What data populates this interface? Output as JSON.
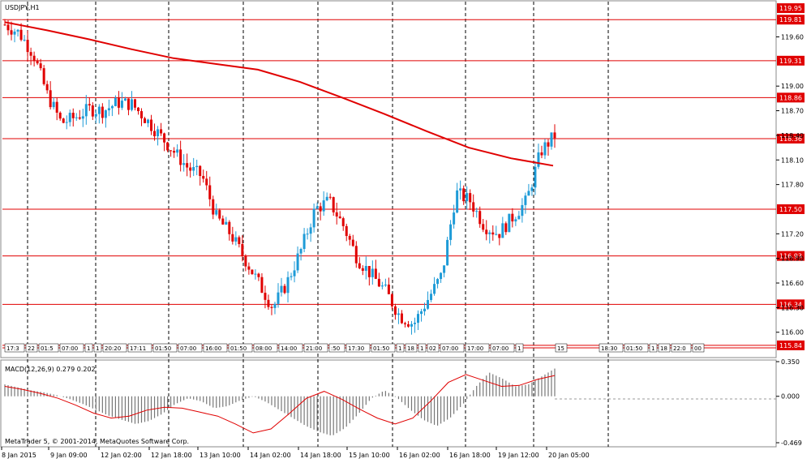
{
  "chart_data": [
    {
      "type": "candlestick",
      "title": "USDJPY,H1",
      "ylim": [
        115.78,
        120.0
      ],
      "y_ticks": [
        "119.95",
        "119.60",
        "119.31",
        "119.00",
        "118.70",
        "118.40",
        "118.10",
        "117.80",
        "117.50",
        "117.20",
        "116.90",
        "116.60",
        "116.30",
        "116.00"
      ],
      "x_ticks": [
        "8 Jan 2015",
        "9 Jan 09:00",
        "12 Jan 02:00",
        "12 Jan 18:00",
        "13 Jan 10:00",
        "14 Jan 02:00",
        "14 Jan 18:00",
        "15 Jan 10:00",
        "16 Jan 02:00",
        "16 Jan 18:00",
        "19 Jan 12:00",
        "20 Jan 05:00"
      ],
      "price_lines": [
        {
          "value": 119.81,
          "label": "119.81"
        },
        {
          "value": 119.31,
          "label": "119.31"
        },
        {
          "value": 118.86,
          "label": "118.86"
        },
        {
          "value": 118.36,
          "label": "118.36"
        },
        {
          "value": 117.5,
          "label": "117.50"
        },
        {
          "value": 116.93,
          "label": "116.93"
        },
        {
          "value": 116.34,
          "label": "116.34"
        },
        {
          "value": 115.84,
          "label": "115.84"
        }
      ],
      "current_price": {
        "value": 119.95,
        "label": "119.95"
      },
      "moving_average_points": [
        119.78,
        119.68,
        119.57,
        119.45,
        119.34,
        119.27,
        119.2,
        119.05,
        118.86,
        118.66,
        118.45,
        118.25,
        118.12,
        118.03
      ],
      "close_points": [
        119.75,
        119.65,
        119.4,
        118.9,
        118.55,
        118.62,
        118.72,
        118.7,
        118.8,
        118.78,
        118.6,
        118.4,
        118.2,
        118.0,
        117.9,
        117.4,
        117.2,
        116.9,
        116.6,
        116.3,
        116.6,
        117.0,
        117.5,
        117.6,
        117.3,
        116.9,
        116.7,
        116.5,
        116.2,
        116.1,
        116.4,
        116.7,
        117.7,
        117.6,
        117.3,
        117.2,
        117.4,
        117.6,
        118.2,
        118.4
      ],
      "time_labels_row": [
        "17:3",
        "22",
        "01:5",
        "07:00",
        "1",
        "1",
        "20:20",
        "17:11",
        "01:50",
        "07:00",
        "16:00",
        "01:50",
        "08:00",
        "14:00",
        "21:00",
        ":50",
        "17:30",
        "01:50",
        "1",
        "18",
        "1",
        "02",
        "07:00",
        "17:00",
        "07:00",
        "1",
        "15",
        "18:30",
        "01:50",
        "1",
        "18",
        "22:0",
        "00"
      ]
    },
    {
      "type": "bar",
      "title": "MACD(12,26,9) 0.279 0.202",
      "ylim": [
        -0.469,
        0.35
      ],
      "y_ticks": [
        "0.350",
        "0.000",
        "-0.469"
      ],
      "histogram": [
        0.12,
        0.09,
        0.06,
        0.04,
        0.01,
        -0.03,
        -0.08,
        -0.14,
        -0.2,
        -0.24,
        -0.28,
        -0.25,
        -0.18,
        -0.08,
        -0.02,
        -0.05,
        -0.12,
        -0.1,
        -0.04,
        0.0,
        -0.06,
        -0.14,
        -0.22,
        -0.3,
        -0.36,
        -0.4,
        -0.32,
        -0.18,
        -0.02,
        0.06,
        -0.02,
        -0.14,
        -0.24,
        -0.3,
        -0.22,
        -0.08,
        0.1,
        0.24,
        0.18,
        0.1,
        0.12,
        0.2,
        0.28
      ],
      "signal": [
        0.1,
        0.07,
        0.03,
        -0.02,
        -0.09,
        -0.17,
        -0.22,
        -0.2,
        -0.14,
        -0.11,
        -0.12,
        -0.16,
        -0.2,
        -0.28,
        -0.37,
        -0.33,
        -0.18,
        -0.02,
        0.05,
        -0.03,
        -0.13,
        -0.22,
        -0.28,
        -0.22,
        -0.05,
        0.14,
        0.22,
        0.16,
        0.1,
        0.11,
        0.17,
        0.21
      ],
      "footer": "MetaTrader 5, © 2001-2014, MetaQuotes Software Corp."
    }
  ],
  "colors": {
    "bull": "#1e9bd7",
    "bear": "#e00000",
    "ma": "#e00000",
    "grid": "#000000",
    "label_bg": "#e00000"
  }
}
